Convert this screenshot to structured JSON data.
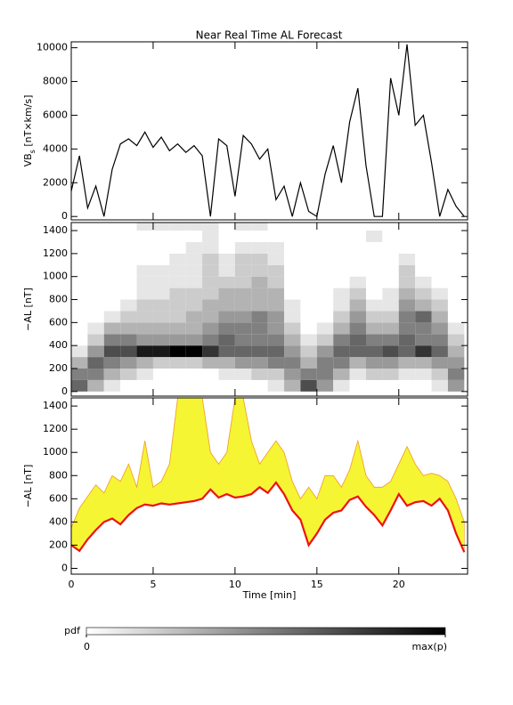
{
  "chart_data": [
    {
      "type": "line",
      "title": "Near Real Time AL Forecast",
      "y_label": {
        "main": "VB",
        "sub": "s",
        "unit": " [nT×km/s]"
      },
      "color": "#000000",
      "show_xtick_labels": false,
      "xlim": [
        0,
        24.2
      ],
      "xticks": [
        0,
        5,
        10,
        15,
        20
      ],
      "ylim": [
        -200,
        10350
      ],
      "yticks": [
        0,
        2000,
        4000,
        6000,
        8000,
        10000
      ],
      "x": [
        0,
        0.5,
        1,
        1.5,
        2,
        2.5,
        3,
        3.5,
        4,
        4.5,
        5,
        5.5,
        6,
        6.5,
        7,
        7.5,
        8,
        8.5,
        9,
        9.5,
        10,
        10.5,
        11,
        11.5,
        12,
        12.5,
        13,
        13.5,
        14,
        14.5,
        15,
        15.5,
        16,
        16.5,
        17,
        17.5,
        18,
        18.5,
        19,
        19.5,
        20,
        20.5,
        21,
        21.5,
        22,
        22.5,
        23,
        23.5,
        24
      ],
      "values": [
        1500,
        3600,
        500,
        1800,
        0,
        2800,
        4300,
        4600,
        4200,
        5000,
        4100,
        4700,
        3900,
        4300,
        3800,
        4200,
        3600,
        0,
        4600,
        4200,
        1200,
        4800,
        4300,
        3400,
        4000,
        1000,
        1800,
        0,
        2000,
        300,
        0,
        2500,
        4200,
        2000,
        5600,
        7600,
        3000,
        0,
        0,
        8200,
        6000,
        10200,
        5400,
        6000,
        3200,
        0,
        1600,
        600,
        0
      ]
    },
    {
      "type": "heatmap",
      "y_label": "−AL [nT]",
      "show_xtick_labels": false,
      "xlim": [
        0,
        24.2
      ],
      "xticks": [
        0,
        5,
        10,
        15,
        20
      ],
      "ylim": [
        -40,
        1470
      ],
      "yticks": [
        0,
        200,
        400,
        600,
        800,
        1000,
        1200,
        1400
      ],
      "xbins": [
        0,
        1,
        2,
        3,
        4,
        5,
        6,
        7,
        8,
        9,
        10,
        11,
        12,
        13,
        14,
        15,
        16,
        17,
        18,
        19,
        20,
        21,
        22,
        23,
        24
      ],
      "ybins": [
        0,
        100,
        200,
        300,
        400,
        500,
        600,
        700,
        800,
        900,
        1000,
        1100,
        1200,
        1300,
        1400,
        1500
      ],
      "z": [
        [
          0.6,
          0.5,
          0.3,
          0.1,
          0,
          0,
          0,
          0,
          0,
          0,
          0,
          0,
          0,
          0,
          0
        ],
        [
          0.3,
          0.5,
          0.6,
          0.4,
          0.2,
          0.1,
          0,
          0,
          0,
          0,
          0,
          0,
          0,
          0,
          0
        ],
        [
          0.1,
          0.3,
          0.5,
          0.7,
          0.5,
          0.3,
          0.1,
          0,
          0,
          0,
          0,
          0,
          0,
          0,
          0
        ],
        [
          0,
          0.2,
          0.4,
          0.7,
          0.5,
          0.3,
          0.2,
          0.1,
          0,
          0,
          0,
          0,
          0,
          0,
          0
        ],
        [
          0,
          0.1,
          0.3,
          0.9,
          0.4,
          0.3,
          0.2,
          0.2,
          0.1,
          0.1,
          0.1,
          0,
          0,
          0,
          0.1
        ],
        [
          0,
          0,
          0.2,
          0.9,
          0.4,
          0.3,
          0.2,
          0.2,
          0.1,
          0.1,
          0.1,
          0,
          0,
          0,
          0.1
        ],
        [
          0,
          0,
          0.2,
          1,
          0.4,
          0.3,
          0.2,
          0.2,
          0.2,
          0.1,
          0.1,
          0.1,
          0,
          0,
          0.1
        ],
        [
          0,
          0,
          0.2,
          1,
          0.4,
          0.3,
          0.3,
          0.2,
          0.2,
          0.1,
          0.1,
          0.1,
          0.1,
          0,
          0.1
        ],
        [
          0,
          0,
          0.3,
          0.8,
          0.5,
          0.4,
          0.3,
          0.3,
          0.2,
          0.2,
          0.2,
          0.2,
          0.1,
          0.1,
          0.1
        ],
        [
          0,
          0.1,
          0.3,
          0.6,
          0.6,
          0.5,
          0.4,
          0.3,
          0.3,
          0.2,
          0.1,
          0.1,
          0,
          0,
          0
        ],
        [
          0,
          0.1,
          0.4,
          0.6,
          0.5,
          0.5,
          0.4,
          0.3,
          0.3,
          0.2,
          0.2,
          0.2,
          0.1,
          0,
          0.1
        ],
        [
          0,
          0.2,
          0.4,
          0.6,
          0.5,
          0.5,
          0.5,
          0.3,
          0.3,
          0.3,
          0.2,
          0.2,
          0.1,
          0,
          0.1
        ],
        [
          0.1,
          0.2,
          0.5,
          0.6,
          0.5,
          0.4,
          0.4,
          0.3,
          0.3,
          0.2,
          0.2,
          0.1,
          0.1,
          0,
          0
        ],
        [
          0.3,
          0.4,
          0.5,
          0.4,
          0.3,
          0.2,
          0.1,
          0.1,
          0,
          0,
          0,
          0,
          0,
          0,
          0
        ],
        [
          0.7,
          0.5,
          0.3,
          0.2,
          0.1,
          0,
          0,
          0,
          0,
          0,
          0,
          0,
          0,
          0,
          0
        ],
        [
          0.4,
          0.5,
          0.5,
          0.4,
          0.2,
          0.1,
          0,
          0,
          0,
          0,
          0,
          0,
          0,
          0,
          0
        ],
        [
          0.1,
          0.3,
          0.5,
          0.6,
          0.5,
          0.3,
          0.2,
          0.1,
          0.1,
          0,
          0,
          0,
          0,
          0,
          0
        ],
        [
          0,
          0.1,
          0.3,
          0.6,
          0.6,
          0.5,
          0.4,
          0.3,
          0.2,
          0.1,
          0,
          0,
          0,
          0,
          0
        ],
        [
          0,
          0.2,
          0.4,
          0.6,
          0.5,
          0.3,
          0.2,
          0.1,
          0,
          0,
          0,
          0,
          0,
          0.1,
          0
        ],
        [
          0,
          0.2,
          0.4,
          0.7,
          0.5,
          0.3,
          0.2,
          0.1,
          0.1,
          0,
          0,
          0,
          0,
          0,
          0
        ],
        [
          0,
          0.1,
          0.3,
          0.6,
          0.6,
          0.5,
          0.5,
          0.4,
          0.3,
          0.2,
          0.2,
          0.1,
          0,
          0,
          0
        ],
        [
          0,
          0.1,
          0.3,
          0.8,
          0.5,
          0.5,
          0.6,
          0.3,
          0.2,
          0.1,
          0,
          0,
          0,
          0,
          0
        ],
        [
          0.1,
          0.2,
          0.4,
          0.6,
          0.5,
          0.4,
          0.3,
          0.2,
          0.1,
          0,
          0,
          0,
          0,
          0,
          0
        ],
        [
          0.4,
          0.5,
          0.4,
          0.3,
          0.2,
          0.1,
          0,
          0,
          0,
          0,
          0,
          0,
          0,
          0,
          0
        ]
      ],
      "colorbar": {
        "label": "pdf",
        "ticks": [
          0,
          {
            "value": 1,
            "label": "max(p)"
          }
        ]
      }
    },
    {
      "type": "area",
      "y_label": "−AL [nT]",
      "x_label": "Time [min]",
      "show_xtick_labels": true,
      "xlim": [
        0,
        24.2
      ],
      "xticks": [
        0,
        5,
        10,
        15,
        20
      ],
      "ylim": [
        -50,
        1470
      ],
      "yticks": [
        0,
        200,
        400,
        600,
        800,
        1000,
        1200,
        1400
      ],
      "band_color": "#f5f533",
      "band_edge_color": "#f0a030",
      "x": [
        0,
        0.5,
        1,
        1.5,
        2,
        2.5,
        3,
        3.5,
        4,
        4.5,
        5,
        5.5,
        6,
        6.5,
        7,
        7.5,
        8,
        8.5,
        9,
        9.5,
        10,
        10.5,
        11,
        11.5,
        12,
        12.5,
        13,
        13.5,
        14,
        14.5,
        15,
        15.5,
        16,
        16.5,
        17,
        17.5,
        18,
        18.5,
        19,
        19.5,
        20,
        20.5,
        21,
        21.5,
        22,
        22.5,
        23,
        23.5,
        24
      ],
      "series": [
        {
          "color": "#ee1111",
          "values": [
            200,
            150,
            250,
            330,
            400,
            430,
            380,
            460,
            520,
            550,
            540,
            560,
            550,
            560,
            570,
            580,
            600,
            680,
            610,
            640,
            610,
            620,
            640,
            700,
            650,
            740,
            640,
            500,
            420,
            200,
            300,
            420,
            480,
            500,
            590,
            620,
            530,
            460,
            370,
            500,
            640,
            540,
            570,
            580,
            540,
            600,
            500,
            300,
            140
          ]
        },
        {
          "color": "#f0a030",
          "values": [
            350,
            520,
            620,
            720,
            650,
            800,
            750,
            900,
            700,
            1100,
            700,
            750,
            900,
            1470,
            1470,
            1470,
            1470,
            1000,
            900,
            1000,
            1470,
            1470,
            1100,
            900,
            1000,
            1100,
            1000,
            750,
            600,
            700,
            600,
            800,
            800,
            700,
            850,
            1100,
            800,
            700,
            700,
            750,
            900,
            1050,
            900,
            800,
            820,
            800,
            750,
            600,
            400
          ]
        }
      ]
    }
  ]
}
